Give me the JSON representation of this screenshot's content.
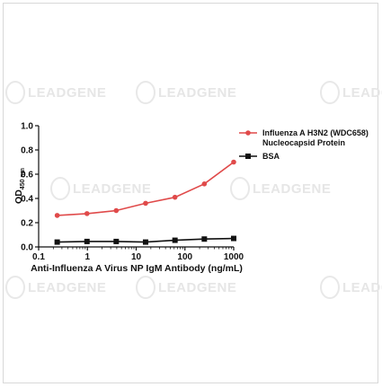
{
  "watermark": {
    "text": "LEADGENE"
  },
  "chart_data": {
    "type": "line",
    "xscale": "log",
    "xlim": [
      0.1,
      1000
    ],
    "ylim": [
      0.0,
      1.0
    ],
    "x_ticks": [
      "0.1",
      "1",
      "10",
      "100",
      "1000"
    ],
    "y_ticks": [
      "0.0",
      "0.2",
      "0.4",
      "0.6",
      "0.8",
      "1.0"
    ],
    "xlabel": "Anti-Influenza A Virus NP IgM Antibody (ng/mL)",
    "ylabel_main": "OD",
    "ylabel_sub": "450 nm",
    "legend_position": "top-right",
    "x": [
      0.24,
      0.98,
      3.9,
      15.6,
      62.5,
      250,
      1000
    ],
    "series": [
      {
        "name_line1": "Influenza A H3N2 (WDC658)",
        "name_line2": "Nucleocapsid Protein",
        "color": "#e04a4a",
        "marker": "circle",
        "values": [
          0.26,
          0.275,
          0.3,
          0.36,
          0.41,
          0.52,
          0.7
        ]
      },
      {
        "name_line1": "BSA",
        "name_line2": "",
        "color": "#111111",
        "marker": "square",
        "values": [
          0.04,
          0.045,
          0.045,
          0.04,
          0.055,
          0.065,
          0.07
        ]
      }
    ]
  }
}
